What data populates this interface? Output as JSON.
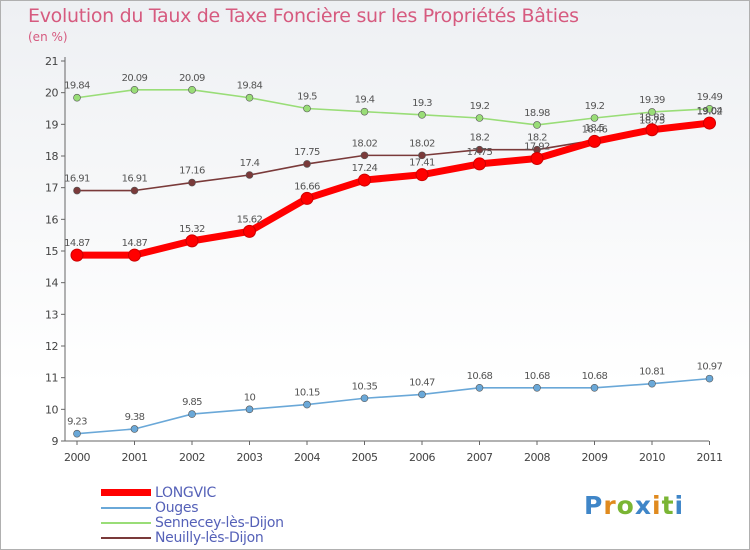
{
  "header": {
    "title": "Evolution du Taux de Taxe Foncière sur les Propriétés Bâties",
    "unit": "(en %)"
  },
  "brand": {
    "letters": [
      "P",
      "r",
      "o",
      "x",
      "i",
      "t",
      "i"
    ]
  },
  "chart_data": {
    "type": "line",
    "title": "Evolution du Taux de Taxe Foncière sur les Propriétés Bâties",
    "ylabel": "(en %)",
    "xlabel": "",
    "x": [
      "2000",
      "2001",
      "2002",
      "2003",
      "2004",
      "2005",
      "2006",
      "2007",
      "2008",
      "2009",
      "2010",
      "2011"
    ],
    "yticks": [
      "9",
      "10",
      "11",
      "12",
      "13",
      "14",
      "15",
      "16",
      "17",
      "18",
      "19",
      "20",
      "21"
    ],
    "ylim": [
      9,
      21
    ],
    "grid": false,
    "legend": "bottom-left",
    "series": [
      {
        "name": "LONGVIC",
        "color": "#ff0000",
        "values": [
          14.87,
          14.87,
          15.32,
          15.62,
          16.66,
          17.24,
          17.41,
          17.75,
          17.92,
          18.46,
          18.83,
          19.04
        ],
        "labels": [
          "14.87",
          "14.87",
          "15.32",
          "15.62",
          "16.66",
          "17.24",
          "17.41",
          "17.75",
          "17.92",
          "18.46",
          "18.83",
          "19.04"
        ]
      },
      {
        "name": "Ouges",
        "color": "#6aa8d8",
        "values": [
          9.23,
          9.38,
          9.85,
          10,
          10.15,
          10.35,
          10.47,
          10.68,
          10.68,
          10.68,
          10.81,
          10.97
        ],
        "labels": [
          "9.23",
          "9.38",
          "9.85",
          "10",
          "10.15",
          "10.35",
          "10.47",
          "10.68",
          "10.68",
          "10.68",
          "10.81",
          "10.97"
        ]
      },
      {
        "name": "Sennecey-lès-Dijon",
        "color": "#99dd77",
        "values": [
          19.84,
          20.09,
          20.09,
          19.84,
          19.5,
          19.4,
          19.3,
          19.2,
          18.98,
          19.2,
          19.39,
          19.49
        ],
        "labels": [
          "19.84",
          "20.09",
          "20.09",
          "19.84",
          "19.5",
          "19.4",
          "19.3",
          "19.2",
          "18.98",
          "19.2",
          "19.39",
          "19.49"
        ]
      },
      {
        "name": "Neuilly-lès-Dijon",
        "color": "#7a3a3a",
        "values": [
          16.91,
          16.91,
          17.16,
          17.4,
          17.75,
          18.02,
          18.02,
          18.2,
          18.2,
          18.5,
          18.75,
          19.02
        ],
        "labels": [
          "16.91",
          "16.91",
          "17.16",
          "17.4",
          "17.75",
          "18.02",
          "18.02",
          "18.2",
          "18.2",
          "18.5",
          "18.75",
          "19.02"
        ]
      }
    ]
  }
}
